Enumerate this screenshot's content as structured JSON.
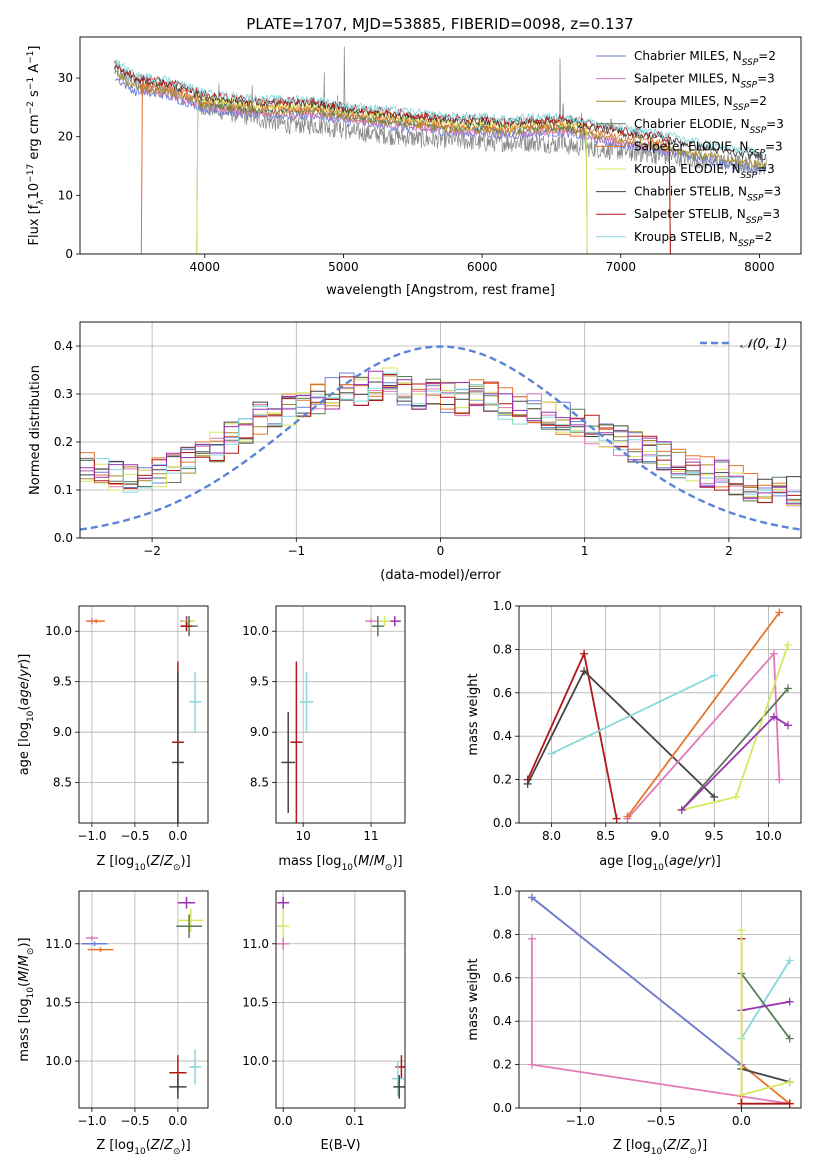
{
  "figure_title": "PLATE=1707, MJD=53885, FIBERID=0098, z=0.137",
  "colors": {
    "chabrier_miles": "#6a7fd8",
    "salpeter_miles": "#e07ab8",
    "kroupa_miles": "#a88a2a",
    "chabrier_elodie": "#5a7a5a",
    "salpeter_elodie": "#e8752a",
    "kroupa_elodie": "#d8e860",
    "chabrier_stelib": "#444444",
    "salpeter_stelib": "#b01818",
    "kroupa_stelib": "#88d8dc",
    "purple": "#9932b0",
    "data": "#888888",
    "normal": "#5b84d6",
    "grid": "#b0b0b0"
  },
  "chart_data": [
    {
      "id": "spectrum",
      "type": "line",
      "xlabel": "wavelength [Angstrom, rest frame]",
      "ylabel": "Flux [f_λ10^-17 erg cm^-2 s^-1 A^-1]",
      "xlim": [
        3100,
        8300
      ],
      "ylim": [
        0,
        37
      ],
      "xticks": [
        4000,
        5000,
        6000,
        7000,
        8000
      ],
      "yticks": [
        0,
        10,
        20,
        30
      ],
      "grid": false,
      "legend_position": "upper-right",
      "legend": [
        {
          "main": "Chabrier MILES, N",
          "sub": "SSP",
          "suffix": "=2",
          "color": "chabrier_miles"
        },
        {
          "main": "Salpeter MILES, N",
          "sub": "SSP",
          "suffix": "=3",
          "color": "salpeter_miles"
        },
        {
          "main": "Kroupa MILES, N",
          "sub": "SSP",
          "suffix": "=2",
          "color": "kroupa_miles"
        },
        {
          "main": "Chabrier ELODIE, N",
          "sub": "SSP",
          "suffix": "=3",
          "color": "chabrier_elodie"
        },
        {
          "main": "Salpeter ELODIE, N",
          "sub": "SSP",
          "suffix": "=3",
          "color": "salpeter_elodie"
        },
        {
          "main": "Kroupa ELODIE, N",
          "sub": "SSP",
          "suffix": "=3",
          "color": "kroupa_elodie"
        },
        {
          "main": "Chabrier STELIB, N",
          "sub": "SSP",
          "suffix": "=3",
          "color": "chabrier_stelib"
        },
        {
          "main": "Salpeter STELIB, N",
          "sub": "SSP",
          "suffix": "=3",
          "color": "salpeter_stelib"
        },
        {
          "main": "Kroupa STELIB, N",
          "sub": "SSP",
          "suffix": "=2",
          "color": "kroupa_stelib"
        }
      ],
      "observed_continuum": [
        [
          3350,
          31.5
        ],
        [
          3500,
          29
        ],
        [
          3700,
          28
        ],
        [
          3900,
          26.5
        ],
        [
          4000,
          25
        ],
        [
          4200,
          24
        ],
        [
          4400,
          23
        ],
        [
          4600,
          22
        ],
        [
          4800,
          22
        ],
        [
          5000,
          21
        ],
        [
          5200,
          20.5
        ],
        [
          5400,
          20
        ],
        [
          5600,
          19.5
        ],
        [
          5800,
          19.5
        ],
        [
          6000,
          19
        ],
        [
          6200,
          19
        ],
        [
          6400,
          19
        ],
        [
          6600,
          18.5
        ],
        [
          6800,
          18
        ],
        [
          7000,
          17.5
        ],
        [
          7200,
          17
        ],
        [
          7400,
          16.5
        ],
        [
          7600,
          16
        ],
        [
          7800,
          15.5
        ],
        [
          8050,
          15
        ]
      ],
      "model_continuum": [
        [
          3350,
          31.5
        ],
        [
          3500,
          29
        ],
        [
          3700,
          28.5
        ],
        [
          3900,
          27
        ],
        [
          4000,
          26
        ],
        [
          4200,
          25.5
        ],
        [
          4400,
          25
        ],
        [
          4600,
          25
        ],
        [
          4800,
          25
        ],
        [
          5000,
          24
        ],
        [
          5200,
          23.5
        ],
        [
          5400,
          23
        ],
        [
          5600,
          22.5
        ],
        [
          5800,
          22
        ],
        [
          6000,
          22
        ],
        [
          6200,
          21.5
        ],
        [
          6400,
          22
        ],
        [
          6600,
          22
        ],
        [
          6800,
          21
        ],
        [
          7000,
          20
        ],
        [
          7200,
          19.5
        ],
        [
          7400,
          18.5
        ],
        [
          7600,
          17.5
        ],
        [
          7800,
          16.5
        ],
        [
          8000,
          16
        ]
      ],
      "emission_lines": [
        [
          4102,
          4
        ],
        [
          4341,
          7
        ],
        [
          4861,
          12
        ],
        [
          4959,
          8
        ],
        [
          5007,
          16
        ],
        [
          6300,
          4
        ],
        [
          6563,
          18
        ],
        [
          6584,
          10
        ],
        [
          6717,
          5
        ],
        [
          6731,
          5
        ],
        [
          7136,
          3
        ]
      ],
      "truncated_models": [
        {
          "color": "salpeter_miles",
          "x0": 3550,
          "x1": 7350
        },
        {
          "color": "salpeter_elodie",
          "x0": 3550,
          "x1": 7350
        },
        {
          "color": "chabrier_elodie",
          "x0": 3950,
          "x1": 6750
        },
        {
          "color": "kroupa_elodie",
          "x0": 3950,
          "x1": 6750
        },
        {
          "color": "salpeter_stelib",
          "x0": 3350,
          "x1": 7350
        }
      ]
    },
    {
      "id": "residuals",
      "type": "step",
      "xlabel": "(data-model)/error",
      "ylabel": "Normed distribution",
      "xlim": [
        -2.5,
        2.5
      ],
      "ylim": [
        0,
        0.45
      ],
      "xticks": [
        -2,
        -1,
        0,
        1,
        2
      ],
      "yticks": [
        0.0,
        0.1,
        0.2,
        0.3,
        0.4
      ],
      "grid": true,
      "legend_position": "upper-right",
      "legend": [
        {
          "label": "𝒩(0, 1)",
          "color": "normal",
          "dashed": true
        }
      ],
      "bin_edges_start": -2.5,
      "bin_width": 0.1,
      "base_shape": [
        0.15,
        0.14,
        0.13,
        0.12,
        0.13,
        0.14,
        0.15,
        0.16,
        0.18,
        0.19,
        0.21,
        0.23,
        0.25,
        0.26,
        0.27,
        0.28,
        0.29,
        0.3,
        0.31,
        0.31,
        0.32,
        0.32,
        0.31,
        0.3,
        0.3,
        0.29,
        0.29,
        0.3,
        0.29,
        0.28,
        0.27,
        0.27,
        0.26,
        0.25,
        0.24,
        0.23,
        0.22,
        0.2,
        0.19,
        0.18,
        0.17,
        0.16,
        0.15,
        0.14,
        0.13,
        0.12,
        0.11,
        0.1,
        0.1,
        0.1
      ],
      "series_colors": [
        "chabrier_miles",
        "salpeter_miles",
        "kroupa_miles",
        "chabrier_elodie",
        "salpeter_elodie",
        "kroupa_elodie",
        "chabrier_stelib",
        "salpeter_stelib",
        "kroupa_stelib",
        "purple"
      ]
    },
    {
      "id": "age_vs_Z",
      "type": "errorbar",
      "xlabel": "Z [log10(Z/Z⊙)]",
      "ylabel": "age  [log10(age/yr)]",
      "xlim": [
        -1.15,
        0.35
      ],
      "ylim": [
        8.1,
        10.25
      ],
      "xticks": [
        -1.0,
        -0.5,
        0.0,
        0.5
      ],
      "yticks": [
        8.5,
        9.0,
        9.5,
        10.0
      ],
      "grid": true,
      "points": [
        {
          "x": -1.0,
          "xerr": 0.03,
          "y": 10.1,
          "yerr": 0.03,
          "color": "salpeter_miles"
        },
        {
          "x": -0.95,
          "xerr": 0.1,
          "y": 10.1,
          "yerr": 0.02,
          "color": "salpeter_elodie"
        },
        {
          "x": 0.1,
          "xerr": 0.06,
          "y": 10.1,
          "yerr": 0.05,
          "color": "purple"
        },
        {
          "x": 0.12,
          "xerr": 0.08,
          "y": 10.1,
          "yerr": 0.05,
          "color": "kroupa_elodie"
        },
        {
          "x": 0.13,
          "xerr": 0.1,
          "y": 10.05,
          "yerr": 0.1,
          "color": "chabrier_elodie"
        },
        {
          "x": 0.1,
          "xerr": 0.05,
          "y": 10.05,
          "yerr": 0.05,
          "color": "salpeter_stelib"
        },
        {
          "x": 0.0,
          "xerr": 0.05,
          "y": 8.9,
          "yerr": 0.8,
          "color": "salpeter_stelib"
        },
        {
          "x": 0.0,
          "xerr": 0.05,
          "y": 8.7,
          "yerr": 0.9,
          "color": "chabrier_stelib"
        },
        {
          "x": 0.2,
          "xerr": 0.05,
          "y": 9.3,
          "yerr": 0.3,
          "color": "kroupa_stelib"
        }
      ]
    },
    {
      "id": "age_vs_mass",
      "type": "errorbar",
      "xlabel": "mass [log10(M/M⊙)]",
      "ylabel": "",
      "xlim": [
        9.6,
        11.5
      ],
      "ylim": [
        8.1,
        10.25
      ],
      "xticks": [
        10,
        11
      ],
      "yticks": [
        8.5,
        9.0,
        9.5,
        10.0
      ],
      "grid": true,
      "points": [
        {
          "x": 11.0,
          "xerr": 0.03,
          "y": 10.1,
          "yerr": 0.02,
          "color": "salpeter_miles"
        },
        {
          "x": 11.35,
          "xerr": 0.05,
          "y": 10.1,
          "yerr": 0.05,
          "color": "purple"
        },
        {
          "x": 11.2,
          "xerr": 0.05,
          "y": 10.1,
          "yerr": 0.05,
          "color": "kroupa_elodie"
        },
        {
          "x": 11.1,
          "xerr": 0.05,
          "y": 10.05,
          "yerr": 0.1,
          "color": "chabrier_elodie"
        },
        {
          "x": 9.78,
          "xerr": 0.1,
          "y": 8.7,
          "yerr": 0.5,
          "color": "chabrier_stelib"
        },
        {
          "x": 9.9,
          "xerr": 0.05,
          "y": 8.9,
          "yerr": 0.8,
          "color": "salpeter_stelib"
        },
        {
          "x": 10.05,
          "xerr": 0.1,
          "y": 9.3,
          "yerr": 0.3,
          "color": "kroupa_stelib"
        }
      ]
    },
    {
      "id": "weight_vs_age",
      "type": "line",
      "xlabel": "age  [log10(age/yr)]",
      "ylabel": "mass weight",
      "xlim": [
        7.7,
        10.3
      ],
      "ylim": [
        0,
        1.0
      ],
      "xticks": [
        8.0,
        8.5,
        9.0,
        9.5,
        10.0
      ],
      "yticks": [
        0.0,
        0.2,
        0.4,
        0.6,
        0.8,
        1.0
      ],
      "grid": true,
      "series": [
        {
          "color": "salpeter_stelib",
          "points": [
            [
              7.78,
              0.2
            ],
            [
              8.3,
              0.78
            ],
            [
              8.6,
              0.02
            ]
          ]
        },
        {
          "color": "chabrier_stelib",
          "points": [
            [
              7.78,
              0.18
            ],
            [
              8.3,
              0.7
            ],
            [
              9.5,
              0.12
            ]
          ]
        },
        {
          "color": "kroupa_stelib",
          "points": [
            [
              8.0,
              0.32
            ],
            [
              9.5,
              0.68
            ]
          ]
        },
        {
          "color": "salpeter_miles",
          "points": [
            [
              8.7,
              0.02
            ],
            [
              10.05,
              0.78
            ],
            [
              10.1,
              0.2
            ]
          ]
        },
        {
          "color": "salpeter_elodie",
          "points": [
            [
              8.7,
              0.03
            ],
            [
              10.1,
              0.97
            ]
          ]
        },
        {
          "color": "chabrier_elodie",
          "points": [
            [
              9.2,
              0.06
            ],
            [
              10.18,
              0.62
            ]
          ]
        },
        {
          "color": "kroupa_elodie",
          "points": [
            [
              9.2,
              0.06
            ],
            [
              9.7,
              0.12
            ],
            [
              10.18,
              0.82
            ]
          ]
        },
        {
          "color": "purple",
          "points": [
            [
              9.2,
              0.06
            ],
            [
              10.05,
              0.49
            ],
            [
              10.18,
              0.45
            ]
          ]
        }
      ]
    },
    {
      "id": "mass_vs_Z",
      "type": "errorbar",
      "xlabel": "Z [log10(Z/Z⊙)]",
      "ylabel": "mass [log10(M/M⊙)]",
      "xlim": [
        -1.15,
        0.35
      ],
      "ylim": [
        9.6,
        11.45
      ],
      "xticks": [
        -1.0,
        -0.5,
        0.0,
        0.5
      ],
      "yticks": [
        10.0,
        10.5,
        11.0
      ],
      "grid": true,
      "points": [
        {
          "x": -1.0,
          "xerr": 0.04,
          "y": 11.05,
          "yerr": 0.02,
          "color": "salpeter_miles"
        },
        {
          "x": -0.97,
          "xerr": 0.15,
          "y": 11.0,
          "yerr": 0.02,
          "color": "chabrier_miles"
        },
        {
          "x": -0.9,
          "xerr": 0.15,
          "y": 10.95,
          "yerr": 0.02,
          "color": "salpeter_elodie"
        },
        {
          "x": 0.1,
          "xerr": 0.1,
          "y": 11.35,
          "yerr": 0.05,
          "color": "purple"
        },
        {
          "x": 0.15,
          "xerr": 0.15,
          "y": 11.2,
          "yerr": 0.1,
          "color": "kroupa_elodie"
        },
        {
          "x": 0.13,
          "xerr": 0.15,
          "y": 11.15,
          "yerr": 0.1,
          "color": "chabrier_elodie"
        },
        {
          "x": 0.0,
          "xerr": 0.1,
          "y": 9.9,
          "yerr": 0.15,
          "color": "salpeter_stelib"
        },
        {
          "x": 0.0,
          "xerr": 0.1,
          "y": 9.78,
          "yerr": 0.1,
          "color": "chabrier_stelib"
        },
        {
          "x": 0.2,
          "xerr": 0.05,
          "y": 9.95,
          "yerr": 0.15,
          "color": "kroupa_stelib"
        }
      ]
    },
    {
      "id": "mass_vs_ebv",
      "type": "errorbar",
      "xlabel": "E(B-V)",
      "ylabel": "",
      "xlim": [
        -0.01,
        0.17
      ],
      "ylim": [
        9.6,
        11.45
      ],
      "xticks": [
        0.0,
        0.1
      ],
      "yticks": [
        10.0,
        10.5,
        11.0
      ],
      "grid": true,
      "points": [
        {
          "x": 0.0,
          "xerr": 0.001,
          "y": 11.35,
          "yerr": 0.05,
          "color": "purple"
        },
        {
          "x": 0.0,
          "xerr": 0.001,
          "y": 11.15,
          "yerr": 0.15,
          "color": "kroupa_elodie"
        },
        {
          "x": 0.0,
          "xerr": 0.001,
          "y": 11.0,
          "yerr": 0.05,
          "color": "salpeter_miles"
        },
        {
          "x": 0.165,
          "xerr": 0.001,
          "y": 9.95,
          "yerr": 0.1,
          "color": "salpeter_stelib"
        },
        {
          "x": 0.16,
          "xerr": 0.001,
          "y": 9.85,
          "yerr": 0.15,
          "color": "kroupa_stelib"
        },
        {
          "x": 0.162,
          "xerr": 0.001,
          "y": 9.78,
          "yerr": 0.1,
          "color": "chabrier_stelib"
        }
      ]
    },
    {
      "id": "weight_vs_Z",
      "type": "line",
      "xlabel": "Z [log10(Z/Z⊙)]",
      "ylabel": "mass weight",
      "xlim": [
        -1.38,
        0.37
      ],
      "ylim": [
        0,
        1.0
      ],
      "xticks": [
        -1.0,
        -0.5,
        0.0
      ],
      "yticks": [
        0.0,
        0.2,
        0.4,
        0.6,
        0.8,
        1.0
      ],
      "grid": true,
      "series": [
        {
          "color": "salpeter_miles",
          "points": [
            [
              -1.3,
              0.78
            ],
            [
              -1.3,
              0.2
            ],
            [
              0.3,
              0.02
            ]
          ]
        },
        {
          "color": "salpeter_elodie",
          "points": [
            [
              -1.3,
              0.97
            ],
            [
              0.0,
              0.2
            ],
            [
              0.3,
              0.02
            ]
          ]
        },
        {
          "color": "chabrier_miles",
          "points": [
            [
              -1.3,
              0.97
            ],
            [
              0.0,
              0.2
            ]
          ]
        },
        {
          "color": "chabrier_stelib",
          "points": [
            [
              0.0,
              0.18
            ],
            [
              0.3,
              0.12
            ]
          ]
        },
        {
          "color": "salpeter_stelib",
          "points": [
            [
              0.0,
              0.78
            ],
            [
              0.0,
              0.02
            ],
            [
              0.3,
              0.02
            ]
          ]
        },
        {
          "color": "kroupa_stelib",
          "points": [
            [
              0.0,
              0.32
            ],
            [
              0.3,
              0.68
            ]
          ]
        },
        {
          "color": "chabrier_elodie",
          "points": [
            [
              0.0,
              0.62
            ],
            [
              0.3,
              0.32
            ]
          ]
        },
        {
          "color": "purple",
          "points": [
            [
              0.0,
              0.45
            ],
            [
              0.3,
              0.49
            ]
          ]
        },
        {
          "color": "kroupa_elodie",
          "points": [
            [
              0.0,
              0.82
            ],
            [
              0.0,
              0.06
            ],
            [
              0.3,
              0.12
            ]
          ]
        }
      ]
    }
  ]
}
